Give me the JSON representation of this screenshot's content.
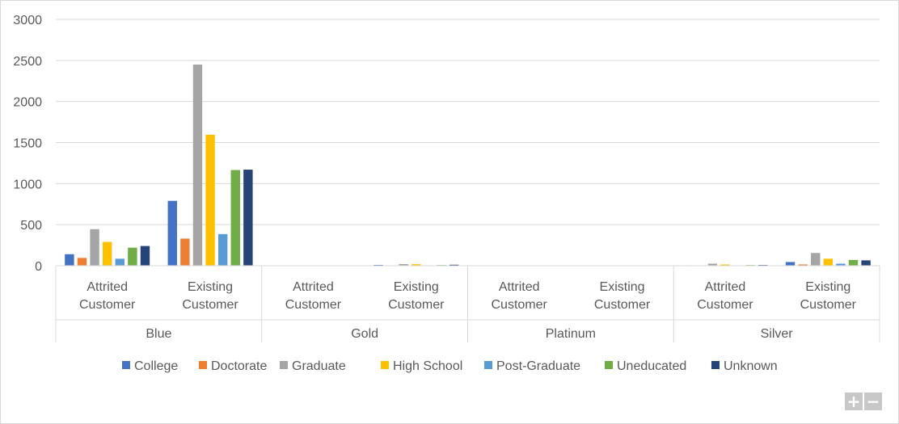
{
  "chart_data": {
    "type": "bar",
    "title": "",
    "xlabel": "",
    "ylabel": "",
    "ylim": [
      0,
      3000
    ],
    "yticks": [
      "0",
      "500",
      "1000",
      "1500",
      "2000",
      "2500",
      "3000"
    ],
    "grid": true,
    "legend_position": "bottom",
    "groups": [
      {
        "label": "Blue",
        "categories": [
          {
            "line1": "Attrited",
            "line2": "Customer"
          },
          {
            "line1": "Existing",
            "line2": "Customer"
          }
        ]
      },
      {
        "label": "Gold",
        "categories": [
          {
            "line1": "Attrited",
            "line2": "Customer"
          },
          {
            "line1": "Existing",
            "line2": "Customer"
          }
        ]
      },
      {
        "label": "Platinum",
        "categories": [
          {
            "line1": "Attrited",
            "line2": "Customer"
          },
          {
            "line1": "Existing",
            "line2": "Customer"
          }
        ]
      },
      {
        "label": "Silver",
        "categories": [
          {
            "line1": "Attrited",
            "line2": "Customer"
          },
          {
            "line1": "Existing",
            "line2": "Customer"
          }
        ]
      }
    ],
    "series": [
      {
        "name": "College",
        "color": "#4472C4",
        "values": [
          140,
          790,
          2,
          10,
          0,
          1,
          5,
          45
        ]
      },
      {
        "name": "Doctorate",
        "color": "#ED7D31",
        "values": [
          95,
          330,
          1,
          4,
          0,
          1,
          3,
          15
        ]
      },
      {
        "name": "Graduate",
        "color": "#A5A5A5",
        "values": [
          445,
          2450,
          5,
          20,
          1,
          3,
          25,
          155
        ]
      },
      {
        "name": "High School",
        "color": "#FFC000",
        "values": [
          290,
          1595,
          3,
          18,
          1,
          2,
          15,
          85
        ]
      },
      {
        "name": "Post-Graduate",
        "color": "#5B9BD5",
        "values": [
          85,
          385,
          1,
          5,
          0,
          1,
          3,
          25
        ]
      },
      {
        "name": "Uneducated",
        "color": "#70AD47",
        "values": [
          220,
          1165,
          2,
          8,
          0,
          2,
          8,
          70
        ]
      },
      {
        "name": "Unknown",
        "color": "#264478",
        "values": [
          240,
          1170,
          3,
          12,
          1,
          2,
          9,
          65
        ]
      }
    ]
  },
  "zoom": {
    "plus": "+",
    "minus": "−"
  }
}
